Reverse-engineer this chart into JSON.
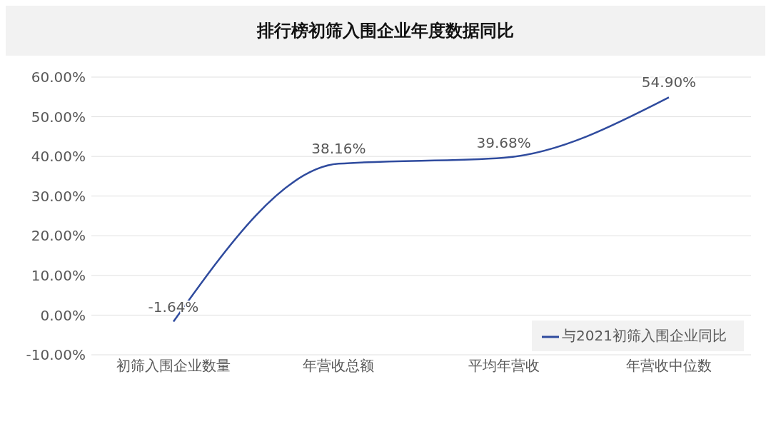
{
  "chart_data": {
    "type": "line",
    "title": "排行榜初筛入围企业年度数据同比",
    "categories": [
      "初筛入围企业数量",
      "年营收总额",
      "平均年营收",
      "年营收中位数"
    ],
    "series": [
      {
        "name": "与2021初筛入围企业同比",
        "color": "#2f4b9e",
        "values": [
          -1.64,
          38.16,
          39.68,
          54.9
        ],
        "value_labels": [
          "-1.64%",
          "38.16%",
          "39.68%",
          "54.90%"
        ]
      }
    ],
    "ylim": [
      -10,
      60
    ],
    "yticks": [
      {
        "value": -10,
        "label": "-10.00%"
      },
      {
        "value": 0,
        "label": "0.00%"
      },
      {
        "value": 10,
        "label": "10.00%"
      },
      {
        "value": 20,
        "label": "20.00%"
      },
      {
        "value": 30,
        "label": "30.00%"
      },
      {
        "value": 40,
        "label": "40.00%"
      },
      {
        "value": 50,
        "label": "50.00%"
      },
      {
        "value": 60,
        "label": "60.00%"
      }
    ],
    "grid": "y",
    "legend": "bottom right",
    "marker": "none",
    "line_style": "solid"
  }
}
